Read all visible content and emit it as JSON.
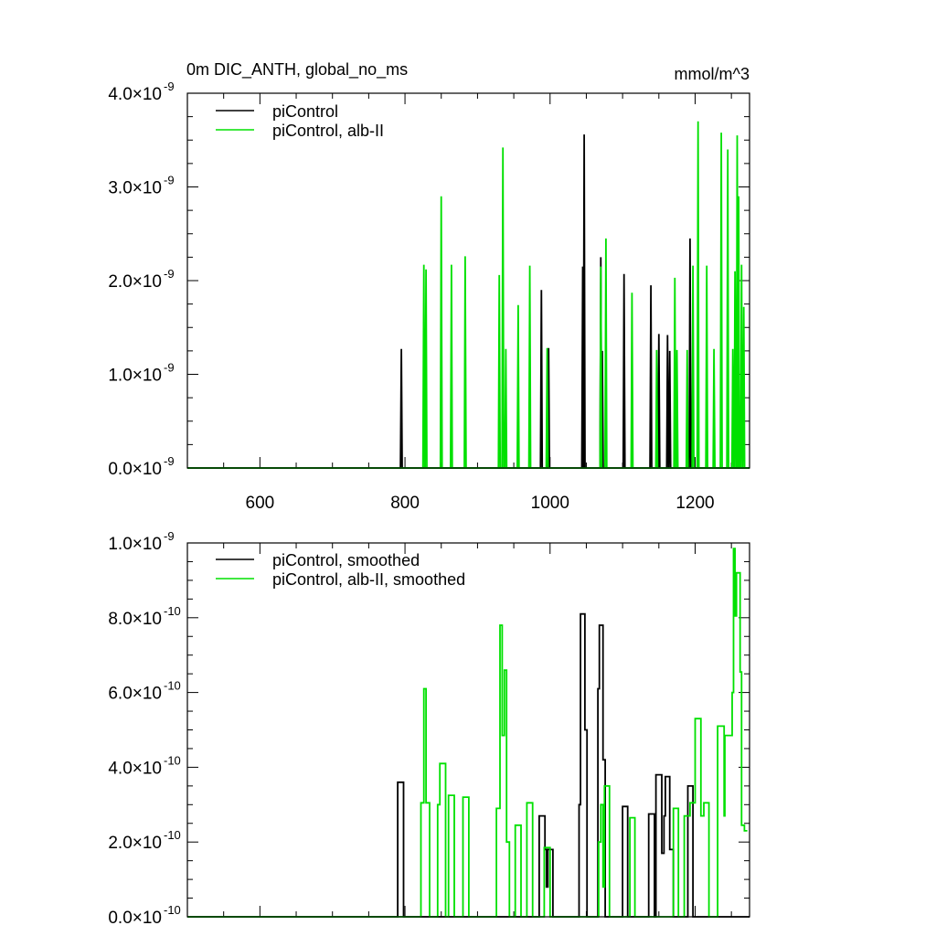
{
  "chart_data": [
    {
      "type": "line",
      "title": "0m DIC_ANTH, global_no_ms",
      "units": "mmol/m^3",
      "xlim": [
        500,
        1275
      ],
      "ylim": [
        0,
        4e-09
      ],
      "x_ticks": [
        600,
        800,
        1000,
        1200
      ],
      "x_tick_labels": [
        "600",
        "800",
        "1000",
        "1200"
      ],
      "y_ticks": [
        {
          "mant": "0.0",
          "exp": "-9",
          "value": 0
        },
        {
          "mant": "1.0",
          "exp": "-9",
          "value": 1e-09
        },
        {
          "mant": "2.0",
          "exp": "-9",
          "value": 2e-09
        },
        {
          "mant": "3.0",
          "exp": "-9",
          "value": 3e-09
        },
        {
          "mant": "4.0",
          "exp": "-9",
          "value": 4e-09
        }
      ],
      "legend_position": "top-left",
      "series": [
        {
          "name": "piControl",
          "color": "#000000",
          "spikes": [
            [
              795,
              1.27e-09
            ],
            [
              988,
              1.9e-09
            ],
            [
              998,
              1.28e-09
            ],
            [
              1045,
              2.15e-09
            ],
            [
              1047,
              3.56e-09
            ],
            [
              1070,
              2.25e-09
            ],
            [
              1072,
              1.25e-09
            ],
            [
              1102,
              2.07e-09
            ],
            [
              1139,
              1.95e-09
            ],
            [
              1150,
              1.43e-09
            ],
            [
              1162,
              1.42e-09
            ],
            [
              1165,
              1.25e-09
            ],
            [
              1193,
              2.45e-09
            ]
          ]
        },
        {
          "name": "piControl, alb-II",
          "color": "#00e000",
          "spikes": [
            [
              826,
              2.17e-09
            ],
            [
              829,
              2.12e-09
            ],
            [
              850,
              2.9e-09
            ],
            [
              864,
              2.17e-09
            ],
            [
              883,
              2.26e-09
            ],
            [
              930,
              2.06e-09
            ],
            [
              935,
              3.42e-09
            ],
            [
              939,
              1.27e-09
            ],
            [
              956,
              1.74e-09
            ],
            [
              972,
              2.16e-09
            ],
            [
              996,
              1.28e-09
            ],
            [
              1070,
              2.15e-09
            ],
            [
              1077,
              2.45e-09
            ],
            [
              1113,
              1.87e-09
            ],
            [
              1147,
              1.26e-09
            ],
            [
              1172,
              2.03e-09
            ],
            [
              1175,
              1.26e-09
            ],
            [
              1189,
              1.26e-09
            ],
            [
              1197,
              2.16e-09
            ],
            [
              1204,
              3.7e-09
            ],
            [
              1216,
              2.16e-09
            ],
            [
              1226,
              1.27e-09
            ],
            [
              1236,
              3.58e-09
            ],
            [
              1245,
              3.4e-09
            ],
            [
              1252,
              1.27e-09
            ],
            [
              1255,
              2.1e-09
            ],
            [
              1258,
              3.55e-09
            ],
            [
              1260,
              2.9e-09
            ],
            [
              1264,
              2.17e-09
            ],
            [
              1267,
              1.72e-09
            ]
          ]
        }
      ]
    },
    {
      "type": "line",
      "xlim": [
        500,
        1275
      ],
      "ylim": [
        0,
        1e-09
      ],
      "x_ticks": [
        600,
        800,
        1000,
        1200
      ],
      "y_ticks": [
        {
          "mant": "0.0",
          "exp": "-10",
          "value": 0
        },
        {
          "mant": "2.0",
          "exp": "-10",
          "value": 2e-10
        },
        {
          "mant": "4.0",
          "exp": "-10",
          "value": 4e-10
        },
        {
          "mant": "6.0",
          "exp": "-10",
          "value": 6e-10
        },
        {
          "mant": "8.0",
          "exp": "-10",
          "value": 8e-10
        },
        {
          "mant": "1.0",
          "exp": "-9",
          "value": 1e-09
        }
      ],
      "legend_position": "top-left",
      "series": [
        {
          "name": "piControl, smoothed",
          "color": "#000000",
          "points": [
            [
              500,
              0
            ],
            [
              790,
              0
            ],
            [
              790,
              3.6e-10
            ],
            [
              798,
              3.6e-10
            ],
            [
              798,
              0
            ],
            [
              985,
              0
            ],
            [
              985,
              2.7e-10
            ],
            [
              993,
              2.7e-10
            ],
            [
              993,
              1.8e-10
            ],
            [
              995,
              1.8e-10
            ],
            [
              995,
              8e-11
            ],
            [
              997,
              8e-11
            ],
            [
              997,
              1.8e-10
            ],
            [
              1004,
              1.8e-10
            ],
            [
              1004,
              0
            ],
            [
              1040,
              0
            ],
            [
              1040,
              3e-10
            ],
            [
              1042,
              3e-10
            ],
            [
              1042,
              8.1e-10
            ],
            [
              1048,
              8.1e-10
            ],
            [
              1048,
              5e-10
            ],
            [
              1051,
              5e-10
            ],
            [
              1051,
              0
            ],
            [
              1066,
              0
            ],
            [
              1066,
              6.1e-10
            ],
            [
              1068,
              6.1e-10
            ],
            [
              1068,
              7.8e-10
            ],
            [
              1073,
              7.8e-10
            ],
            [
              1073,
              4.2e-10
            ],
            [
              1076,
              4.2e-10
            ],
            [
              1076,
              0
            ],
            [
              1100,
              0
            ],
            [
              1100,
              2.95e-10
            ],
            [
              1107,
              2.95e-10
            ],
            [
              1107,
              0
            ],
            [
              1136,
              0
            ],
            [
              1136,
              2.75e-10
            ],
            [
              1144,
              2.75e-10
            ],
            [
              1144,
              0
            ],
            [
              1146,
              0
            ],
            [
              1146,
              3.8e-10
            ],
            [
              1154,
              3.8e-10
            ],
            [
              1154,
              1.7e-10
            ],
            [
              1157,
              1.7e-10
            ],
            [
              1157,
              2.7e-10
            ],
            [
              1159,
              2.7e-10
            ],
            [
              1159,
              3.75e-10
            ],
            [
              1165,
              3.75e-10
            ],
            [
              1165,
              1.8e-10
            ],
            [
              1170,
              1.8e-10
            ],
            [
              1170,
              0
            ],
            [
              1190,
              0
            ],
            [
              1190,
              3.5e-10
            ],
            [
              1197,
              3.5e-10
            ],
            [
              1197,
              0
            ],
            [
              1275,
              0
            ]
          ]
        },
        {
          "name": "piControl, alb-II, smoothed",
          "color": "#00e000",
          "points": [
            [
              500,
              0
            ],
            [
              822,
              0
            ],
            [
              822,
              3.05e-10
            ],
            [
              826,
              3.05e-10
            ],
            [
              826,
              6.1e-10
            ],
            [
              829,
              6.1e-10
            ],
            [
              829,
              3.05e-10
            ],
            [
              834,
              3.05e-10
            ],
            [
              834,
              0
            ],
            [
              845,
              0
            ],
            [
              845,
              3e-10
            ],
            [
              848,
              3e-10
            ],
            [
              848,
              4.1e-10
            ],
            [
              856,
              4.1e-10
            ],
            [
              856,
              0
            ],
            [
              860,
              0
            ],
            [
              860,
              3.25e-10
            ],
            [
              868,
              3.25e-10
            ],
            [
              868,
              0
            ],
            [
              880,
              0
            ],
            [
              880,
              3.2e-10
            ],
            [
              888,
              3.2e-10
            ],
            [
              888,
              0
            ],
            [
              926,
              0
            ],
            [
              926,
              2.9e-10
            ],
            [
              931,
              2.9e-10
            ],
            [
              931,
              7.8e-10
            ],
            [
              934,
              7.8e-10
            ],
            [
              934,
              4.85e-10
            ],
            [
              937,
              4.85e-10
            ],
            [
              937,
              6.6e-10
            ],
            [
              940,
              6.6e-10
            ],
            [
              940,
              2e-10
            ],
            [
              944,
              2e-10
            ],
            [
              944,
              0
            ],
            [
              952,
              0
            ],
            [
              952,
              2.45e-10
            ],
            [
              960,
              2.45e-10
            ],
            [
              960,
              0
            ],
            [
              968,
              0
            ],
            [
              968,
              3.05e-10
            ],
            [
              976,
              3.05e-10
            ],
            [
              976,
              0
            ],
            [
              992,
              0
            ],
            [
              992,
              1.85e-10
            ],
            [
              1000,
              1.85e-10
            ],
            [
              1000,
              0
            ],
            [
              1067,
              0
            ],
            [
              1067,
              2e-10
            ],
            [
              1070,
              2e-10
            ],
            [
              1070,
              3e-10
            ],
            [
              1073,
              3e-10
            ],
            [
              1073,
              8e-11
            ],
            [
              1075,
              8e-11
            ],
            [
              1075,
              3.5e-10
            ],
            [
              1082,
              3.5e-10
            ],
            [
              1082,
              0
            ],
            [
              1110,
              0
            ],
            [
              1110,
              2.65e-10
            ],
            [
              1117,
              2.65e-10
            ],
            [
              1117,
              0
            ],
            [
              1170,
              0
            ],
            [
              1170,
              2.9e-10
            ],
            [
              1177,
              2.9e-10
            ],
            [
              1177,
              0
            ],
            [
              1185,
              0
            ],
            [
              1185,
              2.7e-10
            ],
            [
              1193,
              2.7e-10
            ],
            [
              1193,
              3.05e-10
            ],
            [
              1200,
              3.05e-10
            ],
            [
              1200,
              5.3e-10
            ],
            [
              1208,
              5.3e-10
            ],
            [
              1208,
              2.7e-10
            ],
            [
              1212,
              2.7e-10
            ],
            [
              1212,
              3.05e-10
            ],
            [
              1219,
              3.05e-10
            ],
            [
              1219,
              0
            ],
            [
              1231,
              0
            ],
            [
              1231,
              5.1e-10
            ],
            [
              1240,
              5.1e-10
            ],
            [
              1240,
              2.7e-10
            ],
            [
              1241,
              2.7e-10
            ],
            [
              1241,
              4.85e-10
            ],
            [
              1251,
              4.85e-10
            ],
            [
              1251,
              6e-10
            ],
            [
              1253,
              6e-10
            ],
            [
              1253,
              9.85e-10
            ],
            [
              1255,
              9.85e-10
            ],
            [
              1255,
              8.05e-10
            ],
            [
              1257,
              8.05e-10
            ],
            [
              1257,
              9.2e-10
            ],
            [
              1262,
              9.2e-10
            ],
            [
              1262,
              6.55e-10
            ],
            [
              1264,
              6.55e-10
            ],
            [
              1264,
              2.45e-10
            ],
            [
              1268,
              2.45e-10
            ],
            [
              1268,
              2.3e-10
            ],
            [
              1272,
              2.3e-10
            ]
          ]
        }
      ]
    }
  ]
}
